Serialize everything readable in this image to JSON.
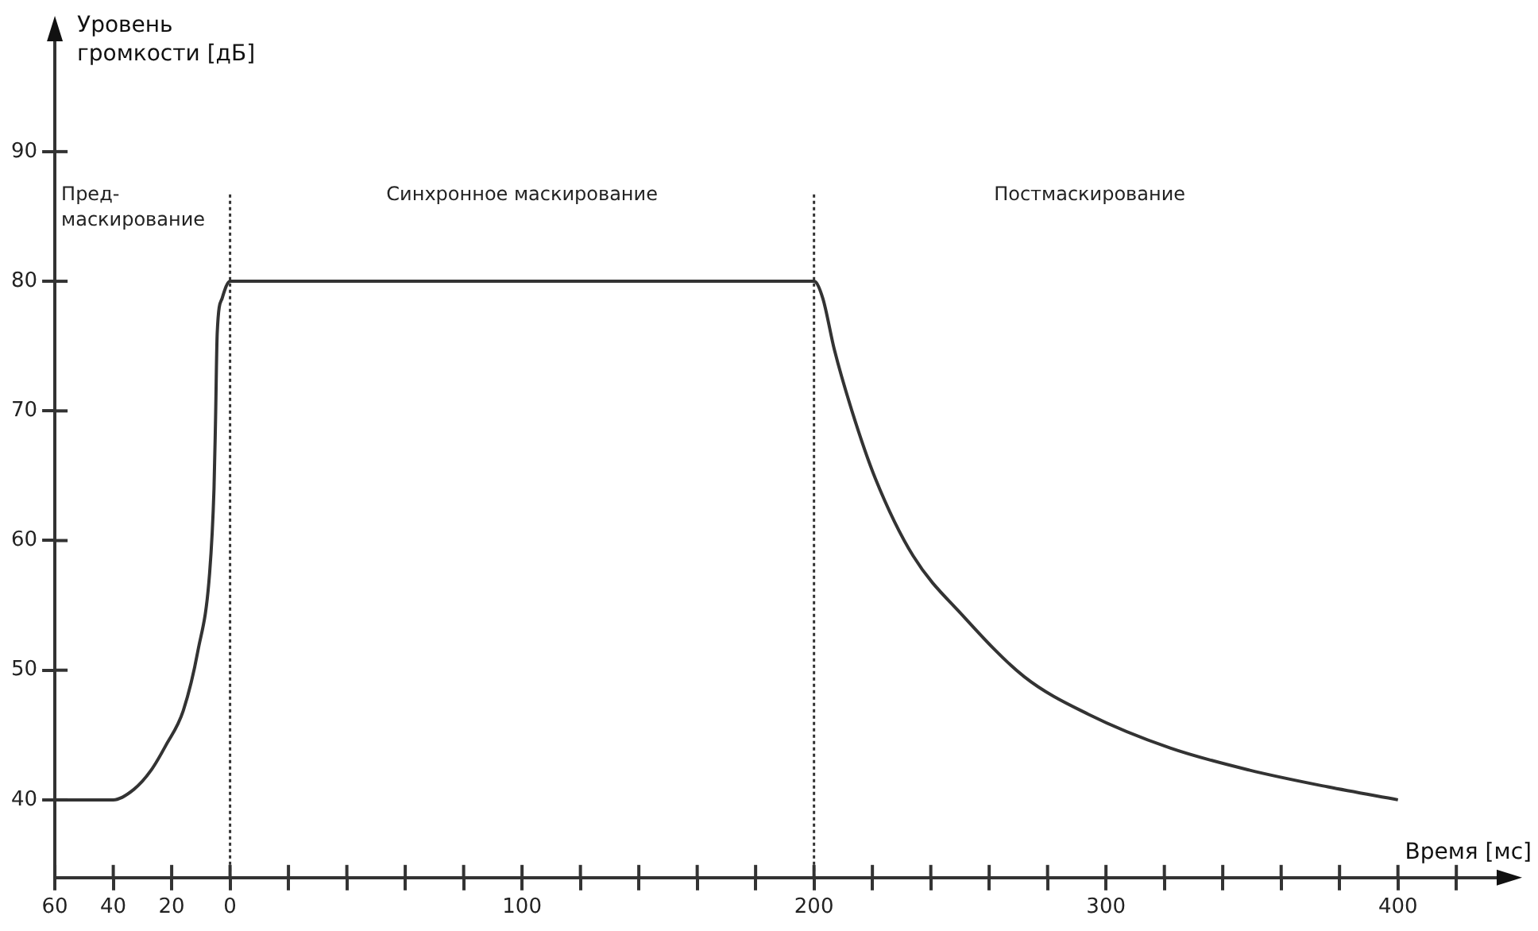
{
  "chart_data": {
    "type": "line",
    "xlabel": "Время [мс]",
    "ylabel": "Уровень громкости [дБ]",
    "annotations": [
      "Пред-\nмаскирование",
      "Синхронное маскирование",
      "Постмаскирование"
    ],
    "series": [
      {
        "color": "#333333",
        "x": [
          -60,
          -40,
          -33,
          -27,
          -22,
          -16,
          -11,
          -7,
          -5.5,
          -5,
          -4.4,
          -2.7,
          0,
          200,
          203,
          207,
          213,
          221,
          234,
          251,
          272,
          294,
          322,
          349,
          376,
          400
        ],
        "values": [
          40,
          40,
          40.8,
          42.3,
          44.2,
          46.9,
          51.5,
          57.5,
          64,
          69,
          76,
          78.7,
          80,
          80,
          78.7,
          74.7,
          70,
          64.8,
          58.8,
          54.2,
          49.5,
          46.6,
          44,
          42.3,
          41,
          40
        ]
      }
    ],
    "ref_lines": [
      {
        "axis": "x",
        "value": 0,
        "line_style": "dotted",
        "color": "#333333"
      },
      {
        "axis": "x",
        "value": 200,
        "line_style": "dotted",
        "color": "#333333"
      }
    ],
    "xlim": [
      -60,
      436
    ],
    "ylim": [
      34,
      99
    ],
    "xticks": [
      {
        "value": -60,
        "label": "60"
      },
      {
        "value": -40,
        "label": "40"
      },
      {
        "value": -20,
        "label": "20"
      },
      0,
      {
        "value": 20,
        "label": null
      },
      {
        "value": 40,
        "label": null
      },
      {
        "value": 60,
        "label": null
      },
      {
        "value": 80,
        "label": null
      },
      100,
      {
        "value": 120,
        "label": null
      },
      {
        "value": 140,
        "label": null
      },
      {
        "value": 160,
        "label": null
      },
      {
        "value": 180,
        "label": null
      },
      200,
      {
        "value": 220,
        "label": null
      },
      {
        "value": 240,
        "label": null
      },
      {
        "value": 260,
        "label": null
      },
      {
        "value": 280,
        "label": null
      },
      300,
      {
        "value": 320,
        "label": null
      },
      {
        "value": 340,
        "label": null
      },
      {
        "value": 360,
        "label": null
      },
      {
        "value": 380,
        "label": null
      },
      400,
      {
        "value": 420,
        "label": null
      }
    ],
    "yticks": [
      40,
      50,
      60,
      70,
      80,
      90
    ],
    "grid": false,
    "legend": false,
    "marker": "none",
    "line_style": "solid"
  }
}
